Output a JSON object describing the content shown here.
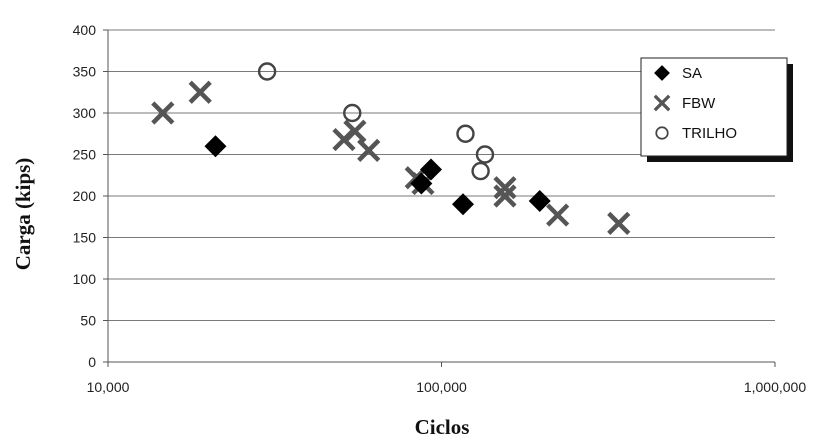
{
  "chart_data": {
    "type": "scatter",
    "xscale": "log",
    "xlabel": "Ciclos",
    "ylabel": "Carga (kips)",
    "xlim": [
      10000,
      1000000
    ],
    "ylim": [
      0,
      400
    ],
    "xticks": [
      10000,
      100000,
      1000000
    ],
    "xtick_labels": [
      "10,000",
      "100,000",
      "1,000,000"
    ],
    "yticks": [
      0,
      50,
      100,
      150,
      200,
      250,
      300,
      350,
      400
    ],
    "ytick_labels": [
      "0",
      "50",
      "100",
      "150",
      "200",
      "250",
      "300",
      "350",
      "400"
    ],
    "grid": "horizontal",
    "legend_position": "top-right",
    "series": [
      {
        "name": "SA",
        "marker": "diamond",
        "points": [
          {
            "x": 21000,
            "y": 260
          },
          {
            "x": 87000,
            "y": 215
          },
          {
            "x": 93000,
            "y": 232
          },
          {
            "x": 116000,
            "y": 190
          },
          {
            "x": 197000,
            "y": 194
          }
        ]
      },
      {
        "name": "FBW",
        "marker": "cross",
        "points": [
          {
            "x": 14600,
            "y": 300
          },
          {
            "x": 18900,
            "y": 325
          },
          {
            "x": 51000,
            "y": 268
          },
          {
            "x": 55000,
            "y": 278
          },
          {
            "x": 60500,
            "y": 255
          },
          {
            "x": 84000,
            "y": 222
          },
          {
            "x": 88000,
            "y": 215
          },
          {
            "x": 155000,
            "y": 210
          },
          {
            "x": 155000,
            "y": 200
          },
          {
            "x": 223000,
            "y": 177
          },
          {
            "x": 340000,
            "y": 167
          }
        ]
      },
      {
        "name": "TRILHO",
        "marker": "circle",
        "points": [
          {
            "x": 30000,
            "y": 350
          },
          {
            "x": 54000,
            "y": 300
          },
          {
            "x": 118000,
            "y": 275
          },
          {
            "x": 135000,
            "y": 250
          },
          {
            "x": 131000,
            "y": 230
          }
        ]
      }
    ]
  }
}
